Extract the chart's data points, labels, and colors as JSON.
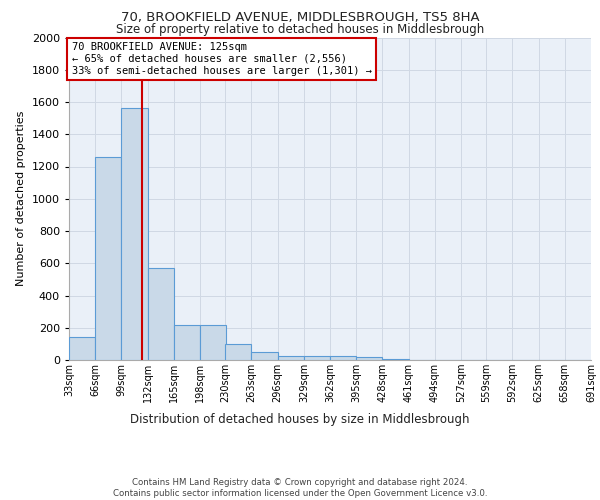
{
  "title1": "70, BROOKFIELD AVENUE, MIDDLESBROUGH, TS5 8HA",
  "title2": "Size of property relative to detached houses in Middlesbrough",
  "xlabel": "Distribution of detached houses by size in Middlesbrough",
  "ylabel": "Number of detached properties",
  "footnote1": "Contains HM Land Registry data © Crown copyright and database right 2024.",
  "footnote2": "Contains public sector information licensed under the Open Government Licence v3.0.",
  "annotation_line1": "70 BROOKFIELD AVENUE: 125sqm",
  "annotation_line2": "← 65% of detached houses are smaller (2,556)",
  "annotation_line3": "33% of semi-detached houses are larger (1,301) →",
  "property_size": 125,
  "bin_edges": [
    33,
    66,
    99,
    132,
    165,
    198,
    230,
    263,
    296,
    329,
    362,
    395,
    428,
    461,
    494,
    527,
    559,
    592,
    625,
    658,
    691
  ],
  "bin_labels": [
    "33sqm",
    "66sqm",
    "99sqm",
    "132sqm",
    "165sqm",
    "198sqm",
    "230sqm",
    "263sqm",
    "296sqm",
    "329sqm",
    "362sqm",
    "395sqm",
    "428sqm",
    "461sqm",
    "494sqm",
    "527sqm",
    "559sqm",
    "592sqm",
    "625sqm",
    "658sqm",
    "691sqm"
  ],
  "bar_values": [
    140,
    1260,
    1560,
    570,
    215,
    215,
    100,
    50,
    25,
    25,
    25,
    20,
    5,
    3,
    2,
    1,
    1,
    1,
    0,
    0
  ],
  "bar_color": "#c9d9e8",
  "bar_edge_color": "#5b9bd5",
  "grid_color": "#d0d8e4",
  "bg_color": "#eaf0f8",
  "red_line_color": "#cc0000",
  "annotation_box_color": "#cc0000",
  "ylim": [
    0,
    2000
  ],
  "yticks": [
    0,
    200,
    400,
    600,
    800,
    1000,
    1200,
    1400,
    1600,
    1800,
    2000
  ],
  "title1_fontsize": 9.5,
  "title2_fontsize": 8.5,
  "ylabel_fontsize": 8,
  "xlabel_fontsize": 8.5
}
